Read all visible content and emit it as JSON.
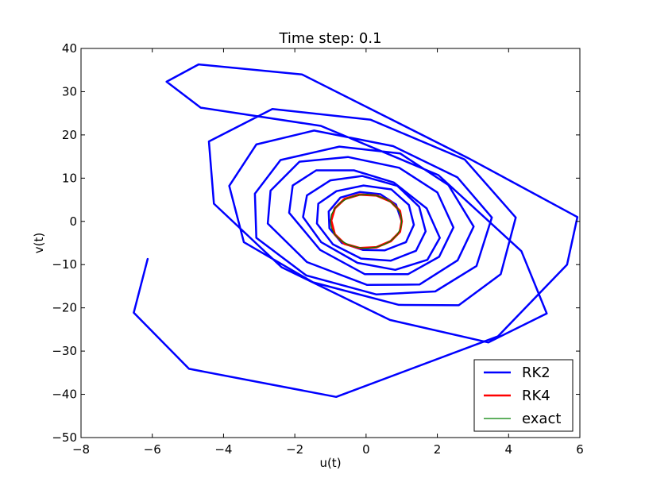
{
  "chart_data": {
    "type": "line",
    "title": "Time step: 0.1",
    "xlabel": "u(t)",
    "ylabel": "v(t)",
    "xlim": [
      -8,
      6
    ],
    "ylim": [
      -50,
      40
    ],
    "xticks": [
      -8,
      -6,
      -4,
      -2,
      0,
      2,
      4,
      6
    ],
    "yticks": [
      -50,
      -40,
      -30,
      -20,
      -10,
      0,
      10,
      20,
      30,
      40
    ],
    "xtick_labels": [
      "−8",
      "−6",
      "−4",
      "−2",
      "0",
      "2",
      "4",
      "6"
    ],
    "ytick_labels": [
      "−50",
      "−40",
      "−30",
      "−20",
      "−10",
      "0",
      "10",
      "20",
      "30",
      "40"
    ],
    "grid": false,
    "legend": "lower-right",
    "series": [
      {
        "name": "RK2",
        "color": "#0000ff",
        "x": [
          1.0,
          0.84,
          0.4,
          -0.18,
          -0.72,
          -1.05,
          -1.03,
          -0.68,
          -0.09,
          0.52,
          1.12,
          1.34,
          1.2,
          0.71,
          -0.07,
          -0.83,
          -1.34,
          -1.38,
          -0.93,
          -0.14,
          0.69,
          1.4,
          1.67,
          1.49,
          0.88,
          -0.11,
          -1.0,
          -1.66,
          -1.77,
          -1.26,
          -0.24,
          0.82,
          1.72,
          2.07,
          1.7,
          0.78,
          -0.34,
          -1.4,
          -2.06,
          -2.16,
          -1.29,
          -0.04,
          1.18,
          2.05,
          2.45,
          2.0,
          0.93,
          -0.51,
          -1.87,
          -2.68,
          -2.76,
          -1.66,
          0.03,
          1.5,
          2.57,
          3.02,
          2.31,
          0.96,
          -0.75,
          -2.4,
          -3.12,
          -3.08,
          -1.68,
          0.29,
          1.94,
          3.1,
          3.53,
          2.56,
          0.76,
          -1.46,
          -3.08,
          -3.84,
          -3.43,
          -1.49,
          0.92,
          2.6,
          3.78,
          4.2,
          2.77,
          0.13,
          -2.63,
          -4.41,
          -4.27,
          -2.37,
          0.67,
          3.43,
          5.07,
          4.36,
          2.03,
          -1.27,
          -4.64,
          -5.6,
          -4.7,
          -1.8,
          2.85,
          5.93,
          5.64,
          3.7,
          -0.84,
          -4.97,
          -6.52,
          -6.13
        ],
        "y": [
          0.0,
          3.9,
          6.3,
          6.8,
          5.5,
          2.3,
          -1.6,
          -5.0,
          -6.6,
          -6.7,
          -4.8,
          -0.8,
          3.8,
          7.4,
          8.3,
          7.0,
          4.1,
          -0.5,
          -5.3,
          -8.6,
          -9.1,
          -6.8,
          -2.3,
          3.4,
          8.2,
          10.5,
          9.5,
          6.0,
          1.0,
          -4.8,
          -9.6,
          -11.2,
          -8.9,
          -3.8,
          3.0,
          9.0,
          11.8,
          11.8,
          8.3,
          2.0,
          -6.6,
          -12.2,
          -12.2,
          -8.2,
          -1.4,
          6.7,
          12.4,
          14.9,
          13.8,
          7.1,
          -0.5,
          -9.4,
          -14.7,
          -14.6,
          -9.0,
          -1.2,
          8.4,
          15.7,
          17.3,
          14.2,
          6.4,
          -3.8,
          -12.5,
          -16.9,
          -16.2,
          -10.3,
          0.9,
          10.2,
          17.4,
          21.0,
          17.8,
          8.2,
          -4.8,
          -14.1,
          -19.3,
          -19.4,
          -12.2,
          0.9,
          14.3,
          23.5,
          26.0,
          18.5,
          4.1,
          -10.6,
          -22.8,
          -28.0,
          -21.3,
          -6.9,
          10.7,
          22.1,
          26.3,
          32.3,
          36.3,
          34.0,
          14.7,
          1.0,
          -10.0,
          -26.6,
          -40.6,
          -34.1,
          -21.1,
          -8.7
        ]
      },
      {
        "name": "RK4",
        "color": "#ff0000",
        "x": [
          1.0,
          0.95,
          0.69,
          0.29,
          -0.18,
          -0.6,
          -0.88,
          -0.98,
          -0.88,
          -0.6,
          -0.18,
          0.29,
          0.69,
          0.95,
          1.0
        ],
        "y": [
          0.0,
          -2.4,
          -4.6,
          -6.0,
          -6.2,
          -5.2,
          -3.0,
          0.2,
          3.0,
          5.2,
          6.2,
          6.0,
          4.6,
          2.4,
          0.0
        ]
      },
      {
        "name": "exact",
        "color": "#008000",
        "x": [
          1.0,
          0.97,
          0.87,
          0.71,
          0.5,
          0.26,
          0.0,
          -0.26,
          -0.5,
          -0.71,
          -0.87,
          -0.97,
          -1.0,
          -0.97,
          -0.87,
          -0.71,
          -0.5,
          -0.26,
          0.0,
          0.26,
          0.5,
          0.71,
          0.87,
          0.97,
          1.0
        ],
        "y": [
          0.0,
          1.6,
          3.1,
          4.4,
          5.4,
          6.0,
          6.28,
          6.0,
          5.4,
          4.4,
          3.1,
          1.6,
          0.0,
          -1.6,
          -3.1,
          -4.4,
          -5.4,
          -6.0,
          -6.28,
          -6.0,
          -5.4,
          -4.4,
          -3.1,
          -1.6,
          0.0
        ]
      }
    ]
  }
}
